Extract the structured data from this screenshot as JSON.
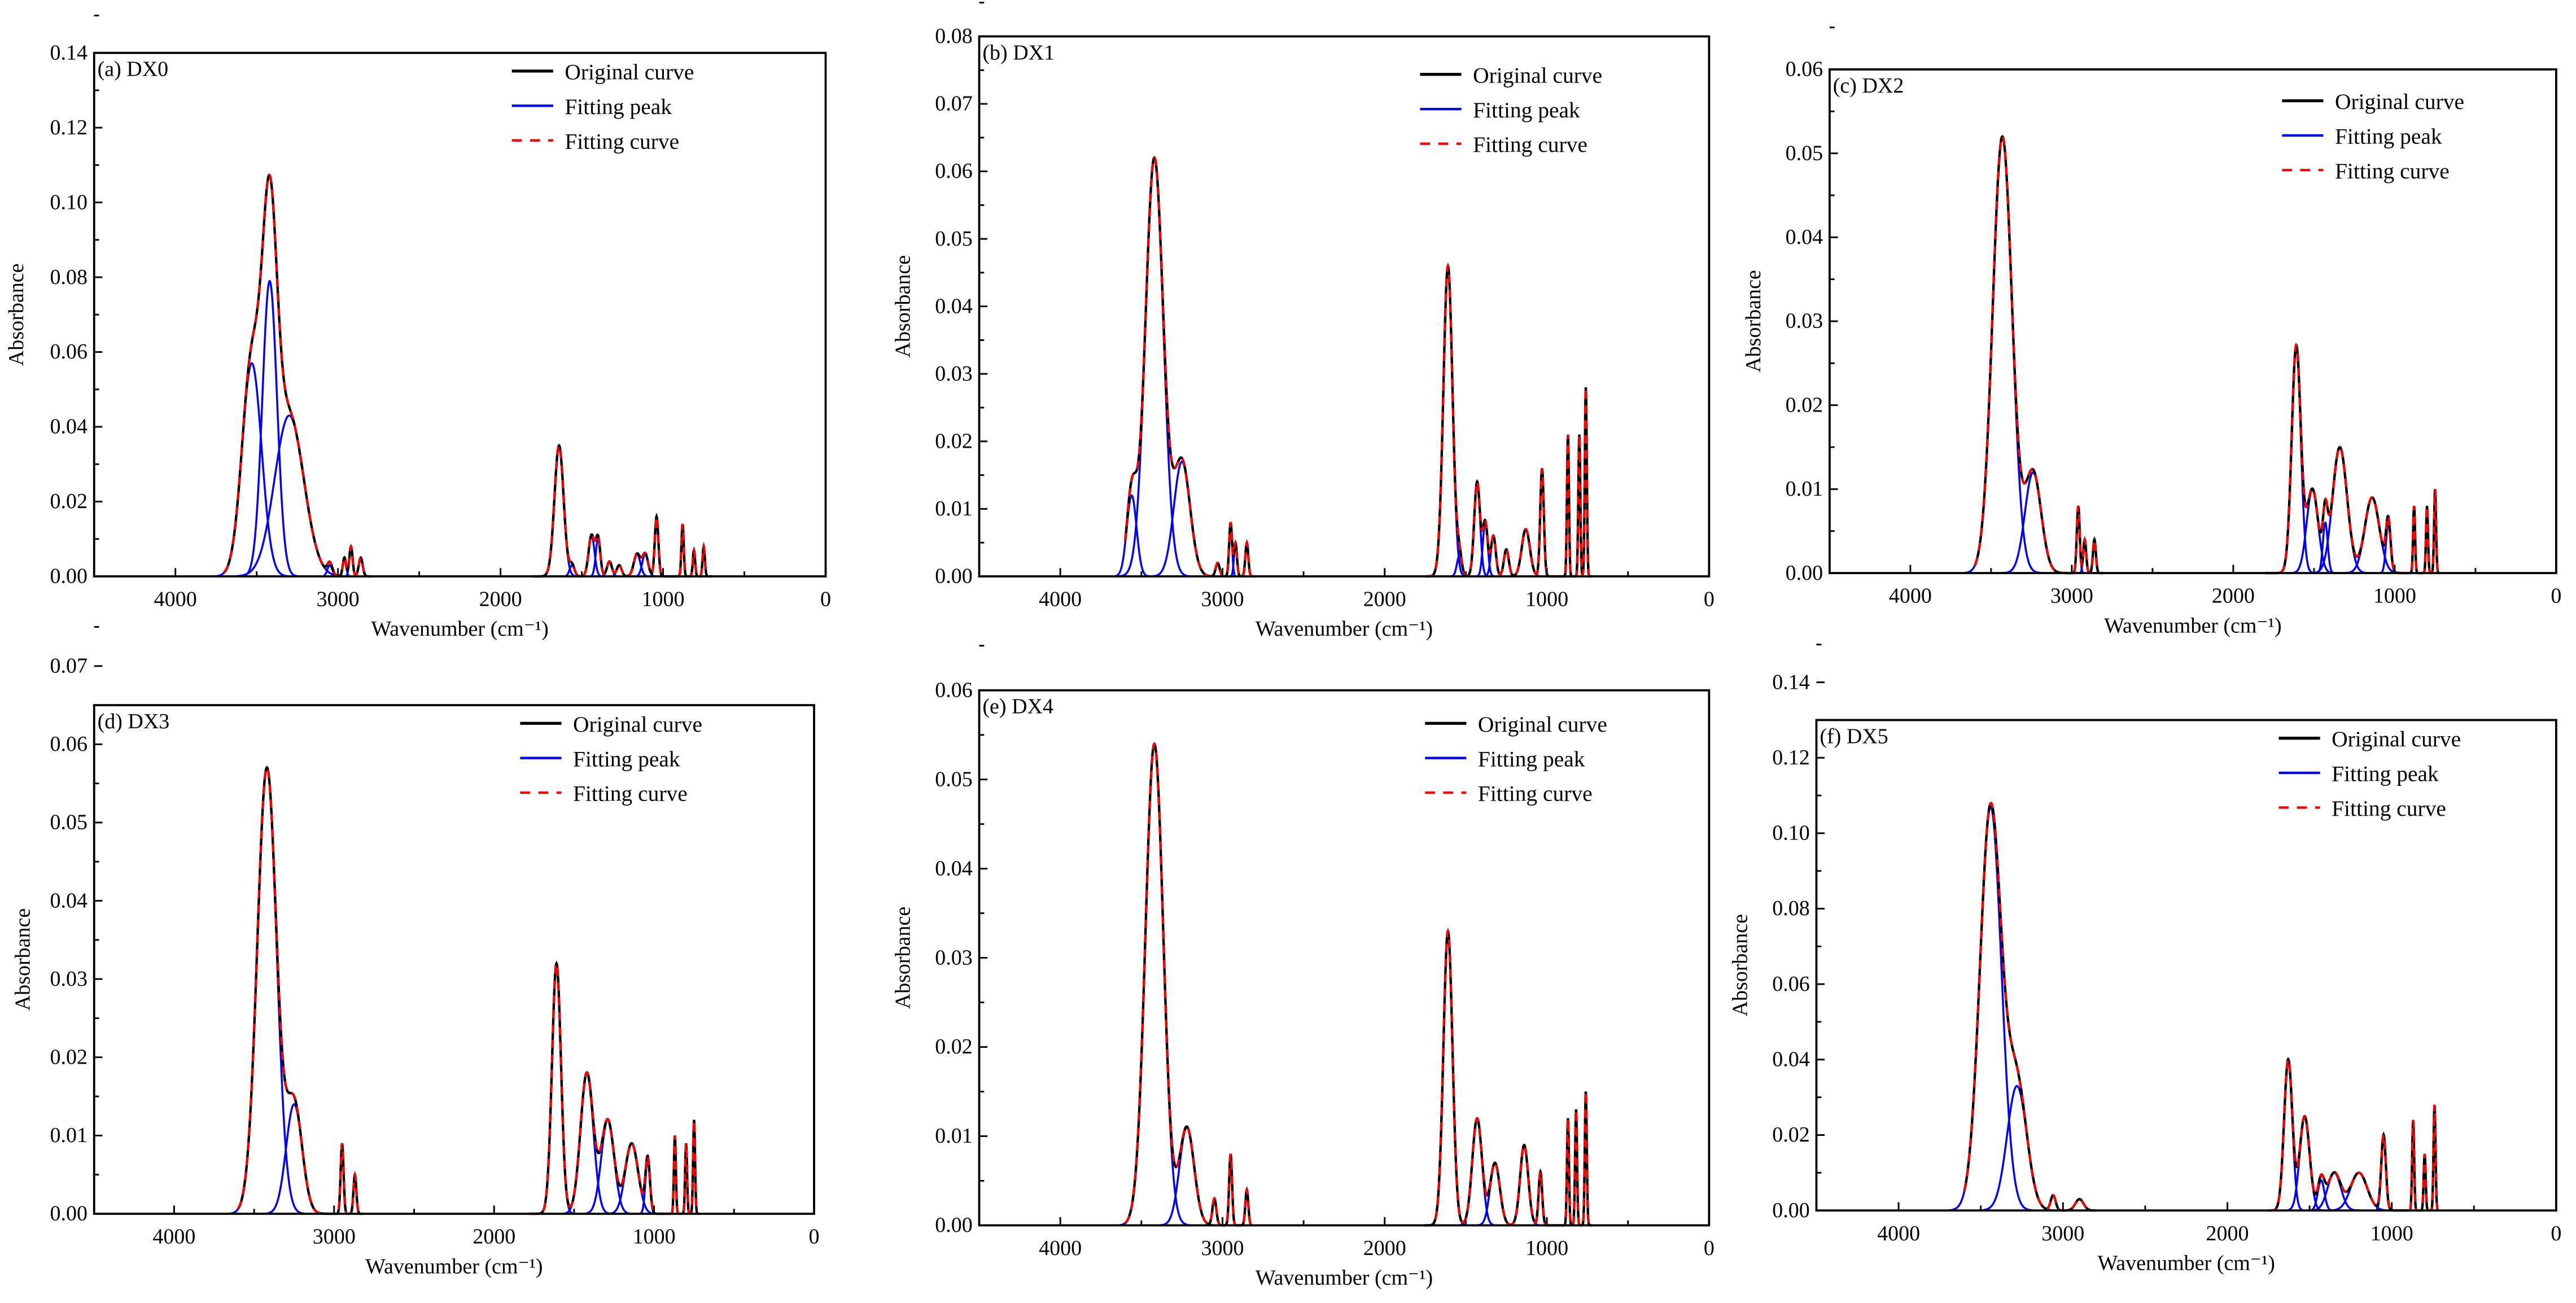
{
  "chart_data": [
    {
      "type": "line",
      "panel_label": "(a) DX0",
      "xlabel": "Wavenumber (cm⁻¹)",
      "ylabel": "Absorbance",
      "xlim": [
        4500,
        0
      ],
      "ylim": [
        0,
        0.14
      ],
      "ystep": 0.02,
      "xticks": [
        4000,
        3000,
        2000,
        1000,
        0
      ],
      "legend": [
        "Original curve",
        "Fitting peak",
        "Fitting curve"
      ],
      "legend_placement": "top-right",
      "ranges": [
        [
          3700,
          2800
        ],
        [
          1800,
          700
        ]
      ],
      "peaks": [
        [
          3530,
          0.057,
          60
        ],
        [
          3420,
          0.079,
          45
        ],
        [
          3300,
          0.043,
          90
        ],
        [
          3050,
          0.003,
          15
        ],
        [
          2960,
          0.005,
          10
        ],
        [
          2920,
          0.008,
          10
        ],
        [
          2860,
          0.005,
          12
        ],
        [
          1640,
          0.035,
          28
        ],
        [
          1560,
          0.003,
          15
        ],
        [
          1440,
          0.011,
          18
        ],
        [
          1400,
          0.01,
          14
        ],
        [
          1330,
          0.004,
          15
        ],
        [
          1270,
          0.003,
          15
        ],
        [
          1160,
          0.006,
          20
        ],
        [
          1110,
          0.006,
          18
        ],
        [
          1040,
          0.016,
          11
        ],
        [
          880,
          0.014,
          7
        ],
        [
          810,
          0.007,
          7
        ],
        [
          750,
          0.008,
          7
        ]
      ]
    },
    {
      "type": "line",
      "panel_label": "(b) DX1",
      "xlabel": "Wavenumber (cm⁻¹)",
      "ylabel": "Absorbance",
      "xlim": [
        4500,
        0
      ],
      "ylim": [
        0,
        0.08
      ],
      "ystep": 0.01,
      "xticks": [
        4000,
        3000,
        2000,
        1000,
        0
      ],
      "legend": [
        "Original curve",
        "Fitting peak",
        "Fitting curve"
      ],
      "legend_placement": "top-right",
      "ranges": [
        [
          3600,
          2800
        ],
        [
          1750,
          720
        ]
      ],
      "peaks": [
        [
          3560,
          0.012,
          30
        ],
        [
          3420,
          0.062,
          55
        ],
        [
          3250,
          0.017,
          50
        ],
        [
          3030,
          0.002,
          12
        ],
        [
          2950,
          0.008,
          9
        ],
        [
          2920,
          0.005,
          9
        ],
        [
          2850,
          0.005,
          9
        ],
        [
          1610,
          0.046,
          28
        ],
        [
          1540,
          0.003,
          15
        ],
        [
          1430,
          0.014,
          18
        ],
        [
          1380,
          0.008,
          15
        ],
        [
          1330,
          0.006,
          15
        ],
        [
          1250,
          0.004,
          15
        ],
        [
          1130,
          0.007,
          25
        ],
        [
          1030,
          0.016,
          11
        ],
        [
          870,
          0.021,
          6
        ],
        [
          800,
          0.021,
          6
        ],
        [
          760,
          0.028,
          6
        ]
      ]
    },
    {
      "type": "line",
      "panel_label": "(c) DX2",
      "xlabel": "Wavenumber (cm⁻¹)",
      "ylabel": "Absorbance",
      "xlim": [
        4500,
        0
      ],
      "ylim": [
        0,
        0.06
      ],
      "ystep": 0.01,
      "xticks": [
        4000,
        3000,
        2000,
        1000,
        0
      ],
      "legend": [
        "Original curve",
        "Fitting peak",
        "Fitting curve"
      ],
      "legend_placement": "top-right",
      "ranges": [
        [
          3600,
          2800
        ],
        [
          1800,
          720
        ]
      ],
      "peaks": [
        [
          3430,
          0.052,
          60
        ],
        [
          3240,
          0.012,
          50
        ],
        [
          2960,
          0.008,
          9
        ],
        [
          2920,
          0.004,
          9
        ],
        [
          2860,
          0.004,
          9
        ],
        [
          1610,
          0.027,
          28
        ],
        [
          1510,
          0.01,
          35
        ],
        [
          1430,
          0.006,
          15
        ],
        [
          1340,
          0.015,
          45
        ],
        [
          1140,
          0.009,
          45
        ],
        [
          1040,
          0.006,
          14
        ],
        [
          880,
          0.008,
          6
        ],
        [
          800,
          0.008,
          6
        ],
        [
          750,
          0.01,
          6
        ]
      ]
    },
    {
      "type": "line",
      "panel_label": "(d) DX3",
      "xlabel": "Wavenumber (cm⁻¹)",
      "ylabel": "Absorbance",
      "xlim": [
        4500,
        0
      ],
      "ylim": [
        0,
        0.065
      ],
      "ystep": 0.01,
      "xticks": [
        4000,
        3000,
        2000,
        1000,
        0
      ],
      "legend": [
        "Original curve",
        "Fitting peak",
        "Fitting curve"
      ],
      "legend_placement": "top-right",
      "ranges": [
        [
          3600,
          2820
        ],
        [
          1780,
          720
        ]
      ],
      "peaks": [
        [
          3420,
          0.057,
          60
        ],
        [
          3250,
          0.014,
          50
        ],
        [
          2950,
          0.009,
          9
        ],
        [
          2870,
          0.005,
          9
        ],
        [
          1610,
          0.032,
          28
        ],
        [
          1420,
          0.018,
          40
        ],
        [
          1290,
          0.012,
          40
        ],
        [
          1140,
          0.009,
          40
        ],
        [
          1040,
          0.007,
          14
        ],
        [
          870,
          0.01,
          6
        ],
        [
          800,
          0.009,
          6
        ],
        [
          750,
          0.012,
          6
        ]
      ]
    },
    {
      "type": "line",
      "panel_label": "(e) DX4",
      "xlabel": "Wavenumber (cm⁻¹)",
      "ylabel": "Absorbance",
      "xlim": [
        4500,
        0
      ],
      "ylim": [
        0,
        0.06
      ],
      "ystep": 0.01,
      "xticks": [
        4000,
        3000,
        2000,
        1000,
        0
      ],
      "legend": [
        "Original curve",
        "Fitting peak",
        "Fitting curve"
      ],
      "legend_placement": "top-right",
      "ranges": [
        [
          3600,
          2820
        ],
        [
          1760,
          720
        ]
      ],
      "peaks": [
        [
          3420,
          0.054,
          55
        ],
        [
          3220,
          0.011,
          45
        ],
        [
          3050,
          0.003,
          12
        ],
        [
          2950,
          0.008,
          9
        ],
        [
          2850,
          0.004,
          9
        ],
        [
          1610,
          0.033,
          28
        ],
        [
          1430,
          0.012,
          30
        ],
        [
          1320,
          0.007,
          30
        ],
        [
          1140,
          0.009,
          25
        ],
        [
          1040,
          0.006,
          11
        ],
        [
          870,
          0.012,
          6
        ],
        [
          820,
          0.013,
          6
        ],
        [
          760,
          0.015,
          6
        ]
      ]
    },
    {
      "type": "line",
      "panel_label": "(f) DX5",
      "xlabel": "Wavenumber (cm⁻¹)",
      "ylabel": "Absorbance",
      "xlim": [
        4500,
        0
      ],
      "ylim": [
        0,
        0.13
      ],
      "ystep": 0.02,
      "xticks": [
        4000,
        3000,
        2000,
        1000,
        0
      ],
      "legend": [
        "Original curve",
        "Fitting peak",
        "Fitting curve"
      ],
      "legend_placement": "top-right",
      "ranges": [
        [
          3600,
          2800
        ],
        [
          1750,
          720
        ]
      ],
      "peaks": [
        [
          3440,
          0.107,
          65
        ],
        [
          3280,
          0.033,
          60
        ],
        [
          3060,
          0.004,
          15
        ],
        [
          2900,
          0.003,
          25
        ],
        [
          1630,
          0.04,
          25
        ],
        [
          1530,
          0.025,
          30
        ],
        [
          1430,
          0.008,
          20
        ],
        [
          1350,
          0.01,
          40
        ],
        [
          1200,
          0.01,
          50
        ],
        [
          1050,
          0.02,
          14
        ],
        [
          870,
          0.024,
          6
        ],
        [
          800,
          0.015,
          6
        ],
        [
          740,
          0.028,
          6
        ]
      ]
    }
  ],
  "colors": {
    "original": "#000000",
    "peak": "#0000ff",
    "fit": "#ff0000"
  }
}
